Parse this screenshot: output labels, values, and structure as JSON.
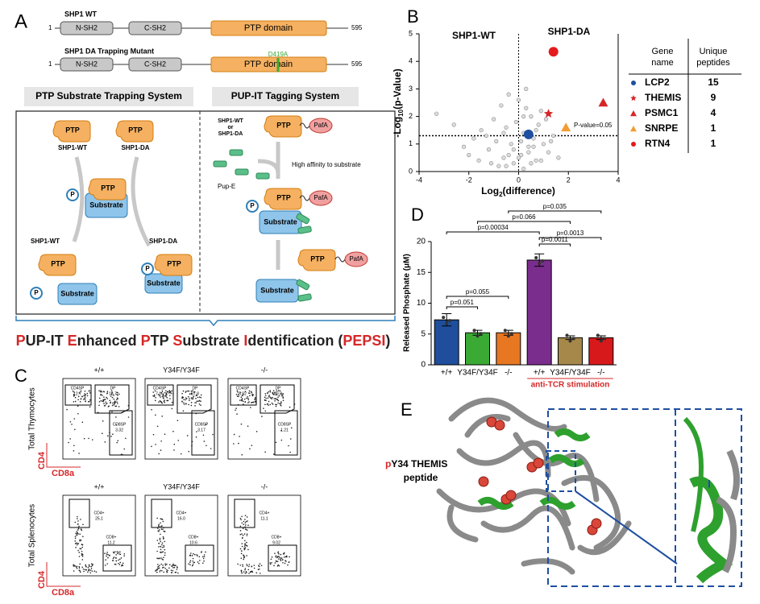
{
  "panel_a": {
    "letter": "A",
    "wt_label": "SHP1 WT",
    "mutant_label": "SHP1 DA Trapping Mutant",
    "domains": [
      "N-SH2",
      "C-SH2",
      "PTP domain"
    ],
    "start": "1",
    "end": "595",
    "mutation": "D419A",
    "systems": [
      "PTP Substrate Trapping System",
      "PUP-IT Tagging System"
    ],
    "diagram": {
      "ptp": "PTP",
      "substrate": "Substrate",
      "p": "P",
      "shp1_wt": "SHP1-WT",
      "shp1_da": "SHP1-DA",
      "pafa": "PafA",
      "source_lines": [
        "SHP1-WT",
        "or",
        "SHP1-DA"
      ],
      "pupe": "Pup-E",
      "affinity": "High affinity to substrate"
    },
    "pepsi_title": [
      "P",
      "UP-IT ",
      "E",
      "nhanced ",
      "P",
      "TP ",
      "S",
      "ubstrate ",
      "I",
      "dentification (",
      "PEPSI",
      ")"
    ],
    "highlight_color": "#d62728"
  },
  "panel_b": {
    "letter": "B",
    "left_label": "SHP1-WT",
    "right_label": "SHP1-DA",
    "y_label": [
      "-Log",
      "10",
      "(p-Value)"
    ],
    "x_label": [
      "Log",
      "2",
      "(difference)"
    ],
    "threshold_label": "P-value=0.05",
    "threshold": 1.3,
    "xlim": [
      -4,
      4
    ],
    "xticks": [
      -4,
      -2,
      0,
      2,
      4
    ],
    "ylim": [
      0,
      5
    ],
    "yticks": [
      0,
      1,
      2,
      3,
      4,
      5
    ],
    "points": {
      "x": [
        -3.3,
        -2.6,
        -2.2,
        -1.8,
        -1.5,
        -1.2,
        -1.0,
        -0.9,
        -0.7,
        -0.6,
        -0.5,
        -0.4,
        -0.3,
        -0.2,
        -0.1,
        0.0,
        0.1,
        0.2,
        0.3,
        0.4,
        0.5,
        0.6,
        0.7,
        0.8,
        1.0,
        1.2,
        1.4,
        1.6,
        -0.8,
        -0.4,
        0.1,
        0.5,
        0.9,
        -1.3,
        -0.6,
        0.3,
        0.7,
        1.1,
        -0.2,
        0.2,
        -2.0,
        -1.6,
        0.6,
        1.3,
        -0.5,
        0.0,
        0.4,
        0.9,
        -1.1,
        0.2
      ],
      "y": [
        2.1,
        1.7,
        0.9,
        1.2,
        1.5,
        0.8,
        1.9,
        1.1,
        2.4,
        0.5,
        1.6,
        2.8,
        1.0,
        0.3,
        1.8,
        2.6,
        0.6,
        1.4,
        3.0,
        0.9,
        2.0,
        1.2,
        0.4,
        1.7,
        1.0,
        0.7,
        1.3,
        0.5,
        0.2,
        0.6,
        1.1,
        0.3,
        2.2,
        1.3,
        1.4,
        2.3,
        1.5,
        1.9,
        0.8,
        0.1,
        0.6,
        0.4,
        0.9,
        1.1,
        0.2,
        0.5,
        0.7,
        0.4,
        0.3,
        2.0
      ]
    },
    "table_headers": [
      [
        "Gene",
        "name"
      ],
      [
        "Unique",
        "peptides"
      ]
    ],
    "genes": [
      {
        "gene": "LCP2",
        "peptides": 15,
        "x": 0.4,
        "y": 1.35,
        "marker": "circle",
        "color": "#1f4fa0"
      },
      {
        "gene": "THEMIS",
        "peptides": 9,
        "x": 1.2,
        "y": 2.1,
        "marker": "star",
        "color": "#d62728"
      },
      {
        "gene": "PSMC1",
        "peptides": 4,
        "x": 3.4,
        "y": 2.5,
        "marker": "triangle",
        "color": "#d62728"
      },
      {
        "gene": "SNRPE",
        "peptides": 1,
        "x": 1.9,
        "y": 1.6,
        "marker": "triangle",
        "color": "#f39c33"
      },
      {
        "gene": "RTN4",
        "peptides": 1,
        "x": 1.4,
        "y": 4.35,
        "marker": "circle",
        "color": "#e41a1c"
      }
    ]
  },
  "chart_data": {
    "type": "bar",
    "letter": "D",
    "y_label": "Released Phosphate (μM)",
    "categories": [
      "+/+",
      "Y34F/Y34F",
      "-/-",
      "+/+",
      "Y34F/Y34F",
      "-/-"
    ],
    "values": [
      7.3,
      5.2,
      5.2,
      17,
      4.4,
      4.4
    ],
    "errors": [
      1.0,
      0.4,
      0.4,
      1.0,
      0.3,
      0.3
    ],
    "colors": [
      "#1f4e9c",
      "#3aaa35",
      "#e87722",
      "#7b2d8e",
      "#a6884a",
      "#d7191c"
    ],
    "ylim": [
      0,
      20
    ],
    "yticks": [
      0,
      5,
      10,
      15,
      20
    ],
    "group_label": "anti-TCR stimulation",
    "group_color": "#d62728",
    "p_values": [
      "p=0.051",
      "p=0.055",
      "p=0.00034",
      "p=0.066",
      "p=0.035",
      "p=0.0011",
      "p=0.0013"
    ]
  },
  "panel_c": {
    "letter": "C",
    "columns": [
      "+/+",
      "Y34F/Y34F",
      "-/-"
    ],
    "row_labels": [
      "Total Thymocytes",
      "Total Splenocytes"
    ],
    "y_axis": "CD4",
    "x_axis": "CD8a",
    "thymus_gates": [
      "CD4SP",
      "DP",
      "CD8SP"
    ],
    "thymus_values": [
      [
        "12.7",
        "16.7",
        "3.32"
      ],
      [
        "7.16",
        "87.8",
        "3.17"
      ],
      [
        "5.92",
        "89.8",
        "1.21"
      ]
    ],
    "spleen_gates": [
      "CD4+",
      "CD8+"
    ],
    "spleen_values": [
      [
        "25.1",
        "11.2"
      ],
      [
        "16.0",
        "10.6"
      ],
      [
        "11.1",
        "9.02"
      ]
    ]
  },
  "panel_e": {
    "letter": "E",
    "label": [
      "p",
      "Y34 THEMIS",
      "peptide"
    ],
    "marker": "I"
  }
}
